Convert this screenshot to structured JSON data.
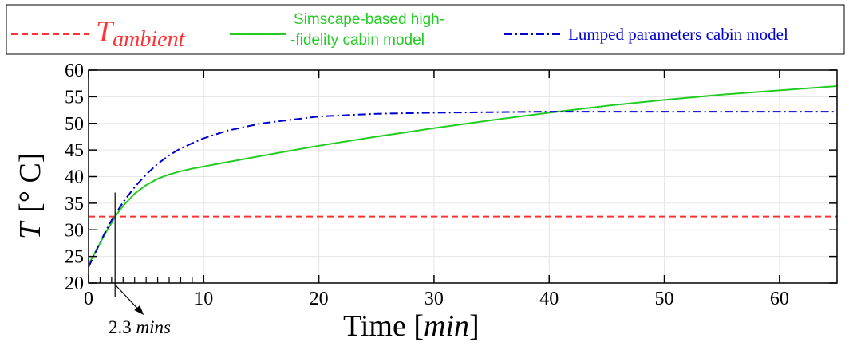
{
  "chart_data": {
    "type": "line",
    "xlabel": {
      "prefix": "Time [",
      "unit": "min",
      "suffix": "]"
    },
    "ylabel": {
      "symbol": "T",
      "unit": "[° C]"
    },
    "xlim": [
      0,
      65
    ],
    "ylim": [
      20,
      60
    ],
    "x_ticks": [
      0,
      10,
      20,
      30,
      40,
      50,
      60
    ],
    "y_ticks": [
      20,
      25,
      30,
      35,
      40,
      45,
      50,
      55,
      60
    ],
    "x_tick_labels": [
      "0",
      "10",
      "20",
      "30",
      "40",
      "50",
      "60"
    ],
    "y_tick_labels": [
      "20",
      "25",
      "30",
      "35",
      "40",
      "45",
      "50",
      "55",
      "60"
    ],
    "grid": true,
    "legend_position": "top",
    "series": [
      {
        "name": "T_ambient",
        "label_main": "T",
        "label_sub": "ambient",
        "color": "#ff3333",
        "style": "dashed",
        "x": [
          0,
          65
        ],
        "y": [
          32.5,
          32.5
        ]
      },
      {
        "name": "Simscape-based high-fidelity cabin model",
        "label_lines": [
          "Simscape-based high-",
          "-fidelity cabin model"
        ],
        "color": "#22cc22",
        "style": "solid",
        "x": [
          0,
          0.5,
          1,
          1.5,
          2,
          2.3,
          3,
          4,
          5,
          6,
          7,
          8,
          9,
          10,
          12,
          15,
          20,
          25,
          30,
          35,
          40,
          45,
          50,
          55,
          60,
          65
        ],
        "y": [
          23.5,
          25.5,
          27.5,
          29.5,
          31.3,
          32.5,
          34.5,
          36.8,
          38.4,
          39.6,
          40.4,
          41.0,
          41.5,
          41.9,
          42.7,
          43.9,
          45.8,
          47.5,
          49.1,
          50.6,
          52.0,
          53.3,
          54.4,
          55.4,
          56.2,
          57.0
        ]
      },
      {
        "name": "Lumped parameters cabin model",
        "label_lines": [
          "Lumped parameters cabin model"
        ],
        "color": "#0000cc",
        "style": "dashdot",
        "x": [
          0,
          0.5,
          1,
          1.5,
          2,
          2.3,
          3,
          4,
          5,
          6,
          7,
          8,
          10,
          12,
          15,
          20,
          25,
          30,
          35,
          40,
          45,
          50,
          55,
          60,
          65
        ],
        "y": [
          23.0,
          25.3,
          27.6,
          29.8,
          31.8,
          32.8,
          35.2,
          38.0,
          40.4,
          42.4,
          44.0,
          45.3,
          47.2,
          48.6,
          50.0,
          51.3,
          51.8,
          52.0,
          52.1,
          52.2,
          52.2,
          52.2,
          52.2,
          52.2,
          52.2
        ]
      }
    ],
    "annotation": {
      "text_value": "2.3",
      "text_unit": "mins",
      "x": 2.3,
      "line_y_top": 37
    }
  }
}
